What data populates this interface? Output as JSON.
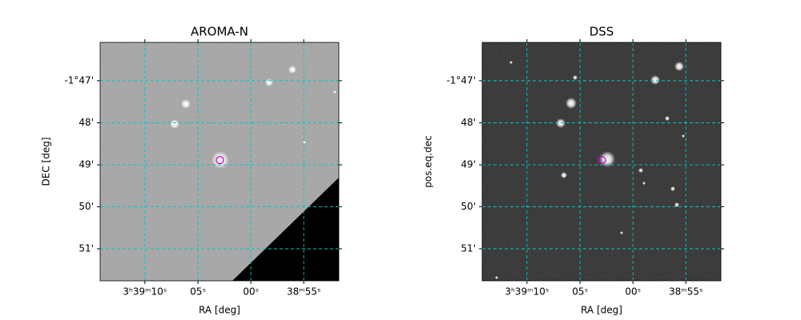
{
  "chart_data": [
    {
      "type": "image",
      "title": "AROMA-N",
      "xlabel": "RA [deg]",
      "ylabel": "DEC [deg]",
      "xlim": [
        54.8093,
        54.7154
      ],
      "ylim": [
        -1.8627,
        -1.7681
      ],
      "xticks": [
        {
          "value": 54.7917,
          "label": "3ʰ39ᵐ10ˢ"
        },
        {
          "value": 54.7708,
          "label": "05ˢ"
        },
        {
          "value": 54.75,
          "label": "00ˢ"
        },
        {
          "value": 54.7292,
          "label": "38ᵐ55ˢ"
        }
      ],
      "yticks": [
        {
          "value": -1.7833,
          "label": "-1°47'"
        },
        {
          "value": -1.8,
          "label": "48'"
        },
        {
          "value": -1.8167,
          "label": "49'"
        },
        {
          "value": -1.8333,
          "label": "50'"
        },
        {
          "value": -1.85,
          "label": "51'"
        }
      ],
      "grid": true,
      "grid_color": "#00c8c8",
      "background": "#a4a4a4",
      "marker": {
        "x": 54.7622,
        "y": -1.8148,
        "color": "#d000d0"
      }
    },
    {
      "type": "image",
      "title": "DSS",
      "xlabel": "RA [deg]",
      "ylabel": "pos.eq.dec",
      "xlim": [
        54.8093,
        54.7154
      ],
      "ylim": [
        -1.8627,
        -1.7681
      ],
      "xticks": [
        {
          "value": 54.7917,
          "label": "3ʰ39ᵐ10ˢ"
        },
        {
          "value": 54.7708,
          "label": "05ˢ"
        },
        {
          "value": 54.75,
          "label": "00ˢ"
        },
        {
          "value": 54.7292,
          "label": "38ᵐ55ˢ"
        }
      ],
      "yticks": [
        {
          "value": -1.7833,
          "label": "-1°47'"
        },
        {
          "value": -1.8,
          "label": "48'"
        },
        {
          "value": -1.8167,
          "label": "49'"
        },
        {
          "value": -1.8333,
          "label": "50'"
        },
        {
          "value": -1.85,
          "label": "51'"
        }
      ],
      "grid": true,
      "grid_color": "#00c8c8",
      "background": "#2a2a2a",
      "marker": {
        "x": 54.7622,
        "y": -1.8148,
        "color": "#d000d0"
      }
    }
  ]
}
